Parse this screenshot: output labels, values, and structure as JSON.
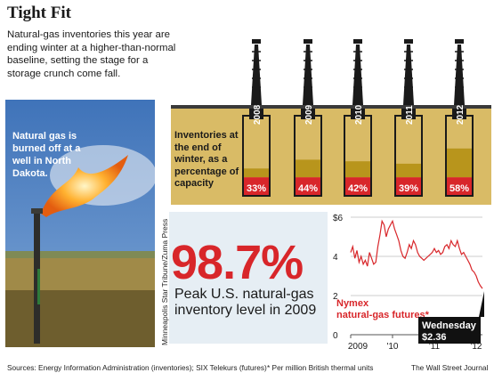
{
  "headline": "Tight Fit",
  "deck": "Natural-gas inventories this year are ending winter at a higher-than-normal baseline, setting the stage for a storage crunch come fall.",
  "photo": {
    "caption": "Natural gas is burned off at a well in North Dakota.",
    "credit": "Minneapolis Star Tribune/Zuma Press"
  },
  "big_stat": {
    "value": "98.7%",
    "label": "Peak U.S. natural-gas inventory level in 2009"
  },
  "colors": {
    "red": "#d8262a",
    "gold": "#b8951c",
    "tan": "#d9bb66",
    "ink": "#1a1a1a",
    "pale_blue": "#e6eef4"
  },
  "chart_data": [
    {
      "type": "bar",
      "subtitle": "Inventories at the end of winter, as a percentage of capacity",
      "categories": [
        "2008",
        "2009",
        "2010",
        "2011",
        "2012"
      ],
      "values": [
        33,
        44,
        42,
        39,
        58
      ],
      "value_labels": [
        "33%",
        "44%",
        "42%",
        "39%",
        "58%"
      ],
      "ylim": [
        0,
        100
      ]
    },
    {
      "type": "line",
      "series": [
        {
          "name": "Nymex natural-gas futures*",
          "x": [
            2009.0,
            2009.05,
            2009.1,
            2009.15,
            2009.2,
            2009.25,
            2009.3,
            2009.35,
            2009.4,
            2009.45,
            2009.5,
            2009.55,
            2009.6,
            2009.65,
            2009.7,
            2009.75,
            2009.8,
            2009.85,
            2009.9,
            2009.95,
            2010.0,
            2010.05,
            2010.1,
            2010.15,
            2010.2,
            2010.25,
            2010.3,
            2010.35,
            2010.4,
            2010.45,
            2010.5,
            2010.55,
            2010.6,
            2010.65,
            2010.7,
            2010.75,
            2010.8,
            2010.85,
            2010.9,
            2010.95,
            2011.0,
            2011.05,
            2011.1,
            2011.15,
            2011.2,
            2011.25,
            2011.3,
            2011.35,
            2011.4,
            2011.45,
            2011.5,
            2011.55,
            2011.6,
            2011.65,
            2011.7,
            2011.75,
            2011.8,
            2011.85,
            2011.9,
            2011.95,
            2012.0,
            2012.05,
            2012.1,
            2012.15
          ],
          "y": [
            4.2,
            4.5,
            3.9,
            4.3,
            3.7,
            4.0,
            3.6,
            3.8,
            3.5,
            4.2,
            3.9,
            3.6,
            3.7,
            4.5,
            5.1,
            5.8,
            5.6,
            5.0,
            5.4,
            5.6,
            5.8,
            5.4,
            5.1,
            4.8,
            4.3,
            4.0,
            3.9,
            4.2,
            4.6,
            4.4,
            4.8,
            4.6,
            4.2,
            4.0,
            3.9,
            3.8,
            3.9,
            4.0,
            4.1,
            4.2,
            4.4,
            4.2,
            4.3,
            4.1,
            4.2,
            4.5,
            4.6,
            4.4,
            4.8,
            4.6,
            4.5,
            4.8,
            4.4,
            4.1,
            4.2,
            4.0,
            3.8,
            3.6,
            3.3,
            3.2,
            3.0,
            2.7,
            2.5,
            2.36
          ]
        }
      ],
      "ylim": [
        0,
        6
      ],
      "ytick_labels": [
        "$6",
        "4",
        "2",
        "0"
      ],
      "xtick_labels": [
        "2009",
        "'10",
        "'11",
        "'12"
      ],
      "annotation": {
        "label": "Wednesday",
        "value": "$2.36"
      }
    }
  ],
  "footer": {
    "sources": "Sources: Energy Information Administration (inventories); SIX Telekurs (futures)",
    "footnote": "* Per million British thermal units",
    "publisher": "The Wall Street Journal"
  }
}
